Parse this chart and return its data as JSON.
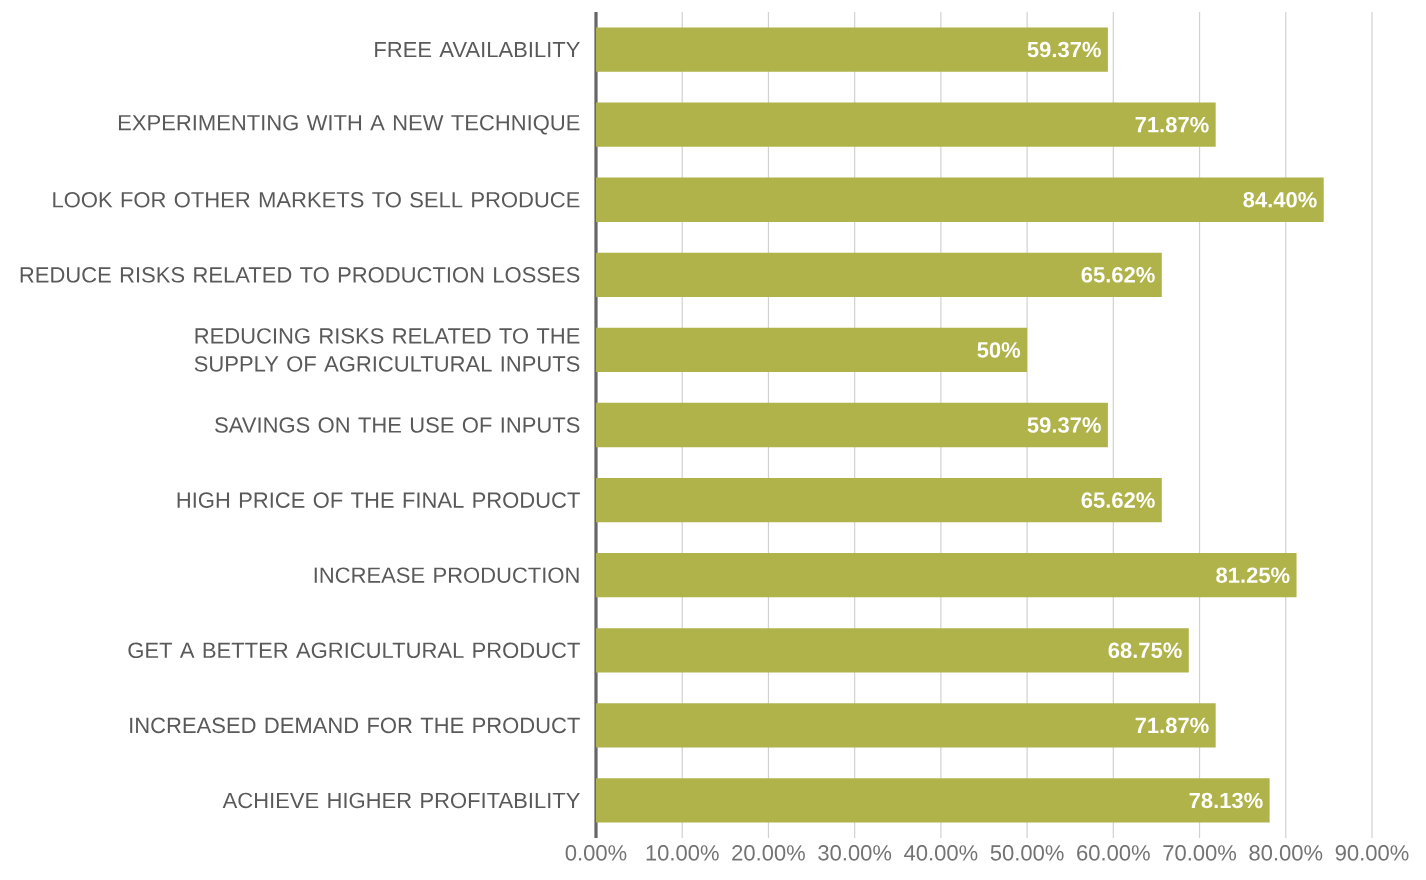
{
  "chart_data": {
    "type": "bar",
    "orientation": "horizontal",
    "categories": [
      "FREE AVAILABILITY",
      "EXPERIMENTING WITH A NEW TECHNIQUE",
      "LOOK FOR OTHER MARKETS TO SELL PRODUCE",
      "REDUCE RISKS RELATED TO PRODUCTION LOSSES",
      "REDUCING RISKS RELATED TO THE SUPPLY OF AGRICULTURAL INPUTS",
      "SAVINGS ON THE USE OF INPUTS",
      "HIGH PRICE OF THE FINAL PRODUCT",
      "INCREASE PRODUCTION",
      "GET A BETTER AGRICULTURAL PRODUCT",
      "INCREASED DEMAND FOR THE PRODUCT",
      "ACHIEVE HIGHER PROFITABILITY"
    ],
    "values": [
      59.37,
      71.87,
      84.4,
      65.62,
      50,
      59.37,
      65.62,
      81.25,
      68.75,
      71.87,
      78.13
    ],
    "value_labels": [
      "59.37%",
      "71.87%",
      "84.40%",
      "65.62%",
      "50%",
      "59.37%",
      "65.62%",
      "81.25%",
      "68.75%",
      "71.87%",
      "78.13%"
    ],
    "color": "#b0b34a",
    "xlim": [
      0,
      90
    ],
    "xticks": [
      {
        "value": 0,
        "label": "0.00%"
      },
      {
        "value": 10,
        "label": "10.00%"
      },
      {
        "value": 20,
        "label": "20.00%"
      },
      {
        "value": 30,
        "label": "30.00%"
      },
      {
        "value": 40,
        "label": "40.00%"
      },
      {
        "value": 50,
        "label": "50.00%"
      },
      {
        "value": 60,
        "label": "60.00%"
      },
      {
        "value": 70,
        "label": "70.00%"
      },
      {
        "value": 80,
        "label": "80.00%"
      },
      {
        "value": 90,
        "label": "90.00%"
      }
    ],
    "grid": "x"
  }
}
